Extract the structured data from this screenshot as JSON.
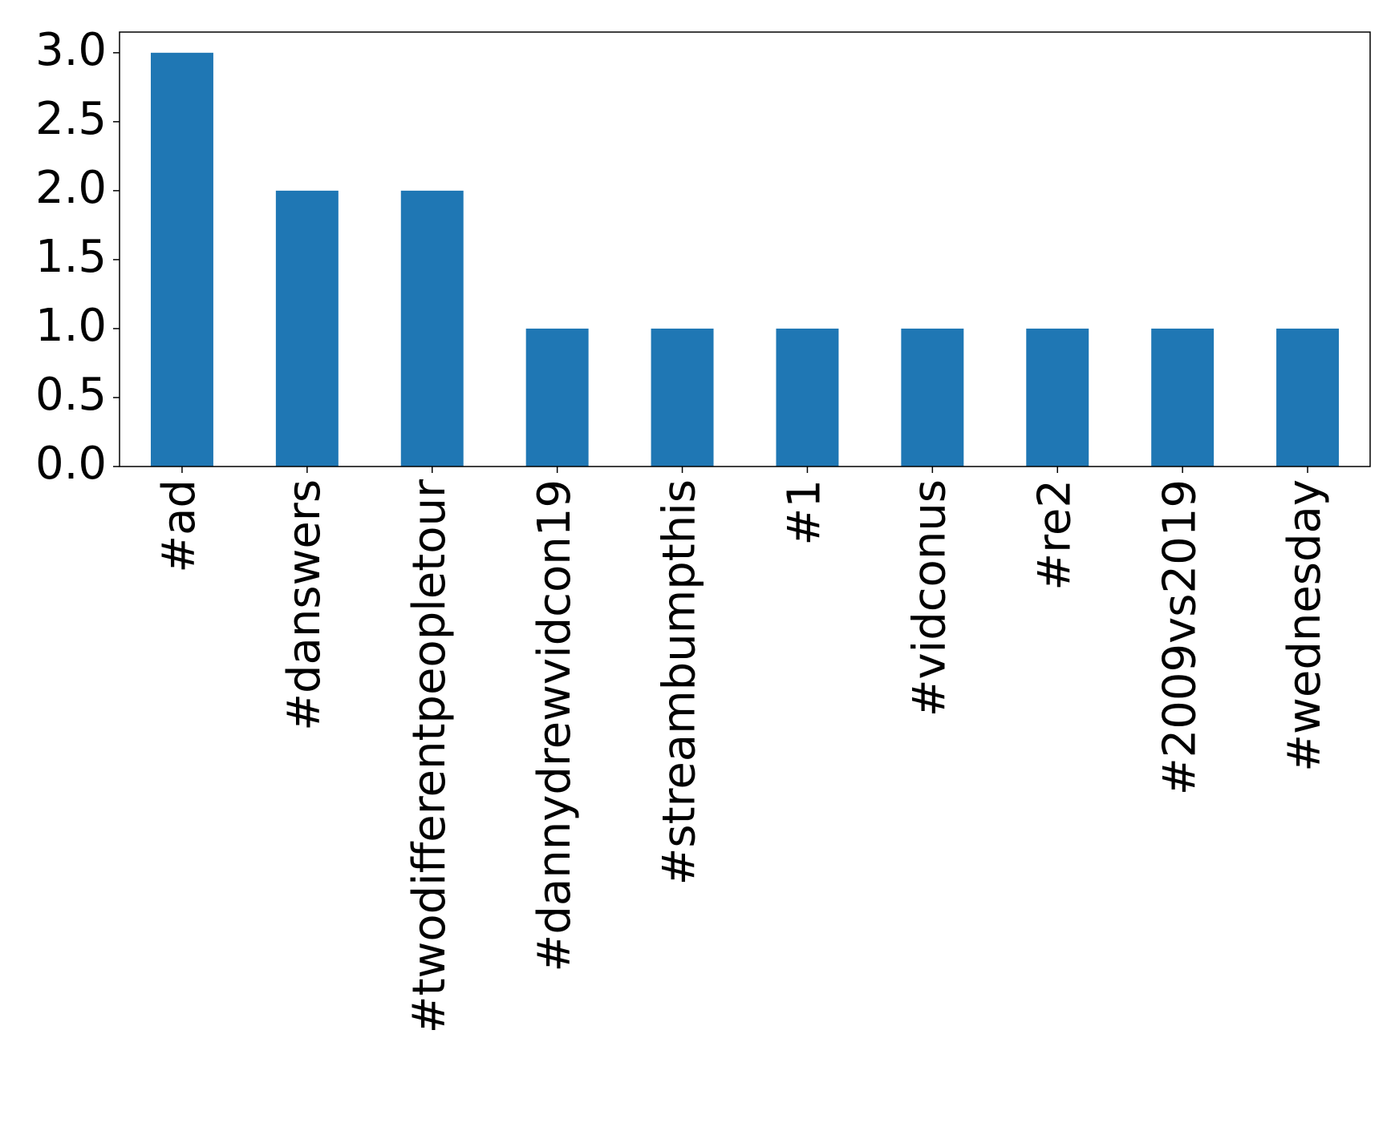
{
  "chart_data": {
    "type": "bar",
    "categories": [
      "#ad",
      "#danswers",
      "#twodifferentpeopletour",
      "#dannydrewvidcon19",
      "#streambumpthis",
      "#1",
      "#vidconus",
      "#re2",
      "#2009vs2019",
      "#wednesday"
    ],
    "values": [
      3,
      2,
      2,
      1,
      1,
      1,
      1,
      1,
      1,
      1
    ],
    "color": "#1f77b4",
    "ylim": [
      0,
      3.15
    ],
    "yticks": [
      {
        "value": 0,
        "label": "0.0"
      },
      0.5,
      {
        "value": 1,
        "label": "1.0"
      },
      1.5,
      {
        "value": 2,
        "label": "2.0"
      },
      2.5,
      {
        "value": 3,
        "label": "3.0"
      }
    ],
    "grid": false
  }
}
